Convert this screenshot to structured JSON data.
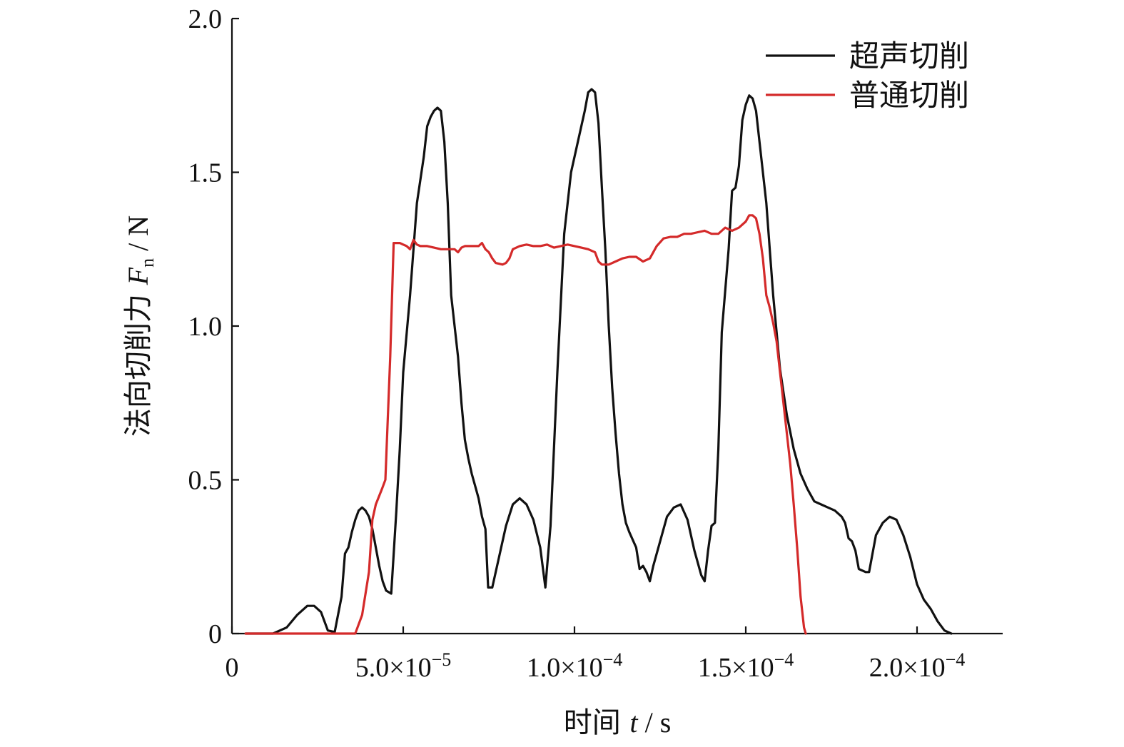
{
  "chart_data": {
    "type": "line",
    "xlabel": {
      "prefix": "时间 ",
      "var": "t",
      "suffix": " / s"
    },
    "ylabel": {
      "prefix": "法向切削力 ",
      "var": "F",
      "sub": "n",
      "suffix": " / N"
    },
    "xlim": [
      0,
      0.000225
    ],
    "ylim": [
      0,
      2.0
    ],
    "xticks": [
      {
        "value": 0,
        "label": "0"
      },
      {
        "value": 5e-05,
        "mantissa": "5.0×10",
        "exp": "−5"
      },
      {
        "value": 0.0001,
        "mantissa": "1.0×10",
        "exp": "−4"
      },
      {
        "value": 0.00015,
        "mantissa": "1.5×10",
        "exp": "−4"
      },
      {
        "value": 0.0002,
        "mantissa": "2.0×10",
        "exp": "−4"
      }
    ],
    "yticks": [
      {
        "value": 0,
        "label": "0"
      },
      {
        "value": 0.5,
        "label": "0.5"
      },
      {
        "value": 1.0,
        "label": "1.0"
      },
      {
        "value": 1.5,
        "label": "1.5"
      },
      {
        "value": 2.0,
        "label": "2.0"
      }
    ],
    "legend_position": "top-right",
    "grid": false,
    "series": [
      {
        "name": "超声切削",
        "color": "#111111",
        "points": [
          [
            4e-06,
            0
          ],
          [
            1.2e-05,
            0
          ],
          [
            1.6e-05,
            0.02
          ],
          [
            1.9e-05,
            0.06
          ],
          [
            2.2e-05,
            0.09
          ],
          [
            2.4e-05,
            0.09
          ],
          [
            2.6e-05,
            0.07
          ],
          [
            2.8e-05,
            0.01
          ],
          [
            3e-05,
            0.005
          ],
          [
            3.2e-05,
            0.12
          ],
          [
            3.3e-05,
            0.26
          ],
          [
            3.4e-05,
            0.28
          ],
          [
            3.5e-05,
            0.33
          ],
          [
            3.6e-05,
            0.37
          ],
          [
            3.7e-05,
            0.4
          ],
          [
            3.8e-05,
            0.41
          ],
          [
            3.9e-05,
            0.4
          ],
          [
            4e-05,
            0.38
          ],
          [
            4.1e-05,
            0.34
          ],
          [
            4.2e-05,
            0.28
          ],
          [
            4.3e-05,
            0.22
          ],
          [
            4.4e-05,
            0.17
          ],
          [
            4.5e-05,
            0.14
          ],
          [
            4.65e-05,
            0.13
          ],
          [
            4.8e-05,
            0.4
          ],
          [
            4.9e-05,
            0.6
          ],
          [
            5e-05,
            0.85
          ],
          [
            5.2e-05,
            1.1
          ],
          [
            5.4e-05,
            1.4
          ],
          [
            5.6e-05,
            1.55
          ],
          [
            5.7e-05,
            1.65
          ],
          [
            5.8e-05,
            1.68
          ],
          [
            5.9e-05,
            1.7
          ],
          [
            6e-05,
            1.71
          ],
          [
            6.1e-05,
            1.7
          ],
          [
            6.2e-05,
            1.6
          ],
          [
            6.3e-05,
            1.4
          ],
          [
            6.4e-05,
            1.1
          ],
          [
            6.5e-05,
            1.0
          ],
          [
            6.6e-05,
            0.9
          ],
          [
            6.7e-05,
            0.75
          ],
          [
            6.8e-05,
            0.63
          ],
          [
            6.9e-05,
            0.57
          ],
          [
            7e-05,
            0.52
          ],
          [
            7.1e-05,
            0.48
          ],
          [
            7.2e-05,
            0.44
          ],
          [
            7.3e-05,
            0.38
          ],
          [
            7.4e-05,
            0.34
          ],
          [
            7.48e-05,
            0.15
          ],
          [
            7.6e-05,
            0.15
          ],
          [
            7.8e-05,
            0.25
          ],
          [
            8e-05,
            0.35
          ],
          [
            8.2e-05,
            0.42
          ],
          [
            8.4e-05,
            0.44
          ],
          [
            8.6e-05,
            0.42
          ],
          [
            8.8e-05,
            0.37
          ],
          [
            9e-05,
            0.28
          ],
          [
            9.15e-05,
            0.15
          ],
          [
            9.3e-05,
            0.35
          ],
          [
            9.5e-05,
            0.85
          ],
          [
            9.7e-05,
            1.3
          ],
          [
            9.9e-05,
            1.5
          ],
          [
            0.000101,
            1.6
          ],
          [
            0.000103,
            1.7
          ],
          [
            0.000104,
            1.76
          ],
          [
            0.000105,
            1.77
          ],
          [
            0.000106,
            1.76
          ],
          [
            0.000107,
            1.66
          ],
          [
            0.000108,
            1.45
          ],
          [
            0.000109,
            1.25
          ],
          [
            0.00011,
            1.0
          ],
          [
            0.000111,
            0.8
          ],
          [
            0.000112,
            0.65
          ],
          [
            0.000113,
            0.52
          ],
          [
            0.000114,
            0.42
          ],
          [
            0.000115,
            0.36
          ],
          [
            0.000116,
            0.33
          ],
          [
            0.000118,
            0.28
          ],
          [
            0.000119,
            0.21
          ],
          [
            0.00012,
            0.22
          ],
          [
            0.000121,
            0.2
          ],
          [
            0.000122,
            0.17
          ],
          [
            0.000123,
            0.22
          ],
          [
            0.000125,
            0.3
          ],
          [
            0.000127,
            0.38
          ],
          [
            0.000129,
            0.41
          ],
          [
            0.000131,
            0.42
          ],
          [
            0.000133,
            0.37
          ],
          [
            0.000135,
            0.27
          ],
          [
            0.000137,
            0.19
          ],
          [
            0.000138,
            0.17
          ],
          [
            0.000139,
            0.27
          ],
          [
            0.00014,
            0.35
          ],
          [
            0.000141,
            0.36
          ],
          [
            0.000142,
            0.6
          ],
          [
            0.000143,
            0.98
          ],
          [
            0.000145,
            1.25
          ],
          [
            0.000146,
            1.44
          ],
          [
            0.000147,
            1.45
          ],
          [
            0.000148,
            1.52
          ],
          [
            0.000149,
            1.67
          ],
          [
            0.00015,
            1.72
          ],
          [
            0.000151,
            1.75
          ],
          [
            0.000152,
            1.74
          ],
          [
            0.000153,
            1.7
          ],
          [
            0.000154,
            1.6
          ],
          [
            0.000156,
            1.4
          ],
          [
            0.000158,
            1.1
          ],
          [
            0.00016,
            0.86
          ],
          [
            0.000162,
            0.71
          ],
          [
            0.000164,
            0.6
          ],
          [
            0.000166,
            0.52
          ],
          [
            0.000168,
            0.47
          ],
          [
            0.00017,
            0.43
          ],
          [
            0.000172,
            0.42
          ],
          [
            0.000174,
            0.41
          ],
          [
            0.000176,
            0.4
          ],
          [
            0.000178,
            0.38
          ],
          [
            0.000179,
            0.36
          ],
          [
            0.00018,
            0.31
          ],
          [
            0.000181,
            0.3
          ],
          [
            0.000182,
            0.27
          ],
          [
            0.000183,
            0.21
          ],
          [
            0.000185,
            0.2
          ],
          [
            0.000186,
            0.2
          ],
          [
            0.000188,
            0.32
          ],
          [
            0.00019,
            0.36
          ],
          [
            0.000192,
            0.38
          ],
          [
            0.000194,
            0.37
          ],
          [
            0.000196,
            0.32
          ],
          [
            0.000198,
            0.25
          ],
          [
            0.0002,
            0.16
          ],
          [
            0.000202,
            0.11
          ],
          [
            0.000204,
            0.08
          ],
          [
            0.000206,
            0.04
          ],
          [
            0.000208,
            0.01
          ],
          [
            0.00021,
            0
          ]
        ]
      },
      {
        "name": "普通切削",
        "color": "#d42a2a",
        "points": [
          [
            4e-06,
            0
          ],
          [
            3.6e-05,
            0
          ],
          [
            3.8e-05,
            0.06
          ],
          [
            4e-05,
            0.2
          ],
          [
            4.1e-05,
            0.37
          ],
          [
            4.2e-05,
            0.42
          ],
          [
            4.38e-05,
            0.47
          ],
          [
            4.48e-05,
            0.5
          ],
          [
            4.62e-05,
            0.9
          ],
          [
            4.72e-05,
            1.27
          ],
          [
            4.9e-05,
            1.27
          ],
          [
            5e-05,
            1.265
          ],
          [
            5.1e-05,
            1.26
          ],
          [
            5.2e-05,
            1.25
          ],
          [
            5.3e-05,
            1.28
          ],
          [
            5.4e-05,
            1.265
          ],
          [
            5.5e-05,
            1.26
          ],
          [
            5.7e-05,
            1.26
          ],
          [
            5.9e-05,
            1.255
          ],
          [
            6.1e-05,
            1.25
          ],
          [
            6.3e-05,
            1.25
          ],
          [
            6.5e-05,
            1.25
          ],
          [
            6.6e-05,
            1.24
          ],
          [
            6.7e-05,
            1.255
          ],
          [
            6.8e-05,
            1.26
          ],
          [
            7e-05,
            1.26
          ],
          [
            7.2e-05,
            1.26
          ],
          [
            7.3e-05,
            1.27
          ],
          [
            7.4e-05,
            1.25
          ],
          [
            7.5e-05,
            1.24
          ],
          [
            7.6e-05,
            1.22
          ],
          [
            7.7e-05,
            1.205
          ],
          [
            7.9e-05,
            1.2
          ],
          [
            8e-05,
            1.205
          ],
          [
            8.1e-05,
            1.22
          ],
          [
            8.2e-05,
            1.25
          ],
          [
            8.4e-05,
            1.26
          ],
          [
            8.6e-05,
            1.265
          ],
          [
            8.8e-05,
            1.26
          ],
          [
            9e-05,
            1.26
          ],
          [
            9.2e-05,
            1.265
          ],
          [
            9.4e-05,
            1.255
          ],
          [
            9.6e-05,
            1.26
          ],
          [
            9.8e-05,
            1.265
          ],
          [
            0.0001,
            1.26
          ],
          [
            0.000102,
            1.255
          ],
          [
            0.000104,
            1.25
          ],
          [
            0.000106,
            1.24
          ],
          [
            0.000107,
            1.21
          ],
          [
            0.000108,
            1.2
          ],
          [
            0.00011,
            1.2
          ],
          [
            0.000112,
            1.21
          ],
          [
            0.000114,
            1.22
          ],
          [
            0.000116,
            1.225
          ],
          [
            0.000118,
            1.225
          ],
          [
            0.00012,
            1.21
          ],
          [
            0.000122,
            1.22
          ],
          [
            0.000124,
            1.26
          ],
          [
            0.000126,
            1.285
          ],
          [
            0.000128,
            1.29
          ],
          [
            0.00013,
            1.29
          ],
          [
            0.000132,
            1.3
          ],
          [
            0.000134,
            1.3
          ],
          [
            0.000136,
            1.305
          ],
          [
            0.000138,
            1.31
          ],
          [
            0.00014,
            1.3
          ],
          [
            0.000142,
            1.3
          ],
          [
            0.000144,
            1.32
          ],
          [
            0.000146,
            1.31
          ],
          [
            0.000148,
            1.32
          ],
          [
            0.00015,
            1.34
          ],
          [
            0.000151,
            1.36
          ],
          [
            0.000152,
            1.36
          ],
          [
            0.000153,
            1.35
          ],
          [
            0.000154,
            1.3
          ],
          [
            0.000155,
            1.22
          ],
          [
            0.000156,
            1.1
          ],
          [
            0.000157,
            1.06
          ],
          [
            0.000158,
            1.01
          ],
          [
            0.000159,
            0.95
          ],
          [
            0.00016,
            0.85
          ],
          [
            0.000161,
            0.75
          ],
          [
            0.000162,
            0.65
          ],
          [
            0.000163,
            0.55
          ],
          [
            0.000164,
            0.42
          ],
          [
            0.000165,
            0.28
          ],
          [
            0.000166,
            0.12
          ],
          [
            0.000167,
            0.02
          ],
          [
            0.0001675,
            0
          ]
        ]
      }
    ]
  }
}
